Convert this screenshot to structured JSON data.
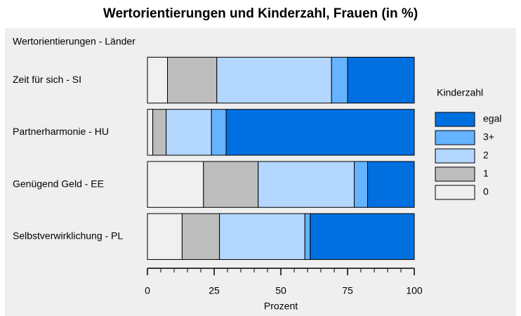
{
  "chart_data": {
    "type": "stacked_bar_horizontal",
    "title": "Wertorientierungen und Kinderzahl, Frauen (in %)",
    "subtitle": "Wertorientierungen - Länder",
    "x_label": "Prozent",
    "legend_title": "Kinderzahl",
    "legend": "right",
    "categories": [
      "Zeit für sich - SI",
      "Partnerharmonie - HU",
      "Genügend Geld - EE",
      "Selbstverwirklichung - PL"
    ],
    "series": [
      {
        "name": "0",
        "color": "#f0f0f0",
        "values": [
          7.5,
          2,
          21,
          13
        ]
      },
      {
        "name": "1",
        "color": "#bdbdbd",
        "values": [
          18.5,
          5,
          20.5,
          14
        ]
      },
      {
        "name": "2",
        "color": "#b3d7ff",
        "values": [
          43,
          17,
          36,
          32
        ]
      },
      {
        "name": "3+",
        "color": "#66b3ff",
        "values": [
          6,
          5.5,
          5,
          2
        ]
      },
      {
        "name": "egal",
        "color": "#0070e0",
        "values": [
          25,
          70.5,
          17.5,
          39
        ]
      }
    ],
    "xlim": [
      0,
      100
    ],
    "xticks": [
      0,
      25,
      50,
      75,
      100
    ],
    "xticks_minor": [
      5,
      10,
      15,
      20,
      30,
      35,
      40,
      45,
      55,
      60,
      65,
      70,
      80,
      85,
      90,
      95
    ]
  }
}
